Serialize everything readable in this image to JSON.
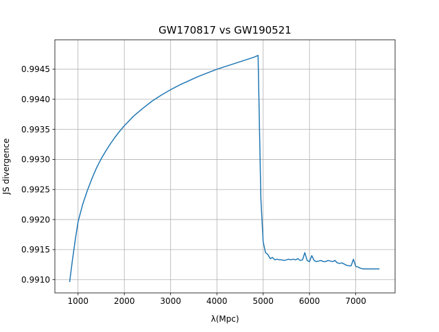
{
  "chart_data": {
    "type": "line",
    "title": "GW170817 vs GW190521",
    "xlabel": "λ(Mpc)",
    "ylabel": "JS divergence",
    "xlim": [
      500,
      7850
    ],
    "ylim": [
      0.99078,
      0.99499
    ],
    "grid": true,
    "x_ticks": [
      1000,
      2000,
      3000,
      4000,
      5000,
      6000,
      7000
    ],
    "x_tick_labels": [
      "1000",
      "2000",
      "3000",
      "4000",
      "5000",
      "6000",
      "7000"
    ],
    "y_ticks": [
      0.991,
      0.9915,
      0.992,
      0.9925,
      0.993,
      0.9935,
      0.994,
      0.9945
    ],
    "y_tick_labels": [
      "0.9910",
      "0.9915",
      "0.9920",
      "0.9925",
      "0.9930",
      "0.9935",
      "0.9940",
      "0.9945"
    ],
    "series": [
      {
        "color": "#1f77b4",
        "x": [
          820,
          880,
          940,
          1000,
          1100,
          1200,
          1300,
          1400,
          1500,
          1600,
          1700,
          1800,
          1900,
          2000,
          2200,
          2400,
          2600,
          2800,
          3000,
          3200,
          3400,
          3600,
          3800,
          4000,
          4200,
          4400,
          4600,
          4800,
          4890,
          4950,
          5000,
          5050,
          5100,
          5150,
          5200,
          5250,
          5300,
          5350,
          5400,
          5450,
          5500,
          5550,
          5600,
          5650,
          5700,
          5750,
          5800,
          5850,
          5900,
          5950,
          6000,
          6050,
          6100,
          6150,
          6200,
          6250,
          6300,
          6350,
          6400,
          6450,
          6500,
          6550,
          6600,
          6650,
          6700,
          6750,
          6800,
          6850,
          6900,
          6950,
          7000,
          7050,
          7100,
          7150,
          7200,
          7250,
          7300,
          7350,
          7400,
          7450,
          7500
        ],
        "y": [
          0.99097,
          0.99133,
          0.99166,
          0.99196,
          0.99225,
          0.99248,
          0.99268,
          0.99286,
          0.99301,
          0.99314,
          0.99326,
          0.99337,
          0.99347,
          0.99356,
          0.99372,
          0.99385,
          0.99397,
          0.99407,
          0.99416,
          0.99424,
          0.99431,
          0.99438,
          0.99444,
          0.9945,
          0.99455,
          0.9946,
          0.99465,
          0.9947,
          0.99473,
          0.99235,
          0.99163,
          0.99145,
          0.99142,
          0.99135,
          0.99137,
          0.99133,
          0.99134,
          0.99133,
          0.99133,
          0.99132,
          0.99133,
          0.99134,
          0.99133,
          0.99134,
          0.99133,
          0.99135,
          0.99132,
          0.99133,
          0.99145,
          0.99132,
          0.9913,
          0.9914,
          0.99132,
          0.9913,
          0.99131,
          0.99132,
          0.9913,
          0.9913,
          0.99132,
          0.99131,
          0.9913,
          0.99132,
          0.99128,
          0.99127,
          0.99128,
          0.99126,
          0.99124,
          0.99123,
          0.99123,
          0.99134,
          0.99122,
          0.99121,
          0.99119,
          0.99118,
          0.99118,
          0.99118,
          0.99118,
          0.99118,
          0.99118,
          0.99118,
          0.99118
        ]
      }
    ]
  }
}
